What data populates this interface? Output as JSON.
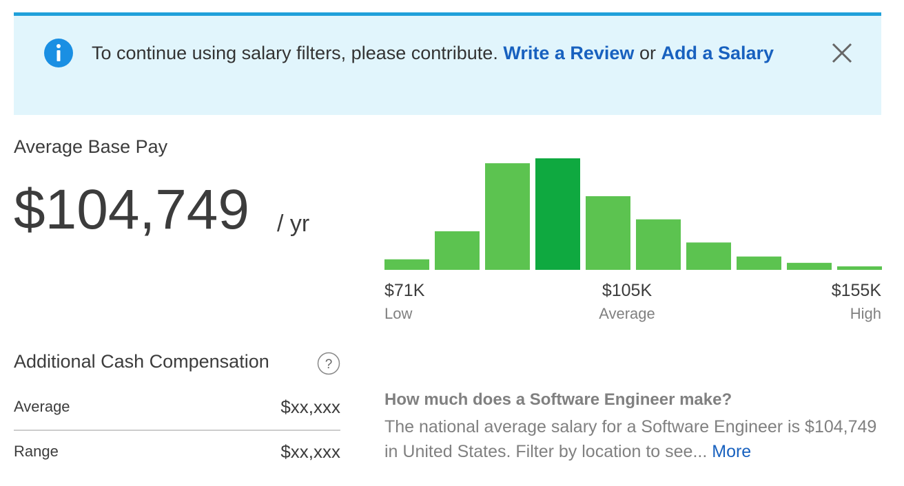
{
  "banner": {
    "text": "To continue using salary filters, please contribute.",
    "link1": "Write a Review",
    "joiner": "or",
    "link2": "Add a Salary"
  },
  "pay": {
    "label": "Average Base Pay",
    "amount": "$104,749",
    "unit": "/ yr"
  },
  "histogram": {
    "values": [
      15,
      55,
      152,
      159,
      105,
      72,
      39,
      19,
      10,
      5
    ],
    "colors": [
      "#5cc350",
      "#5cc350",
      "#5cc350",
      "#0fa940",
      "#5cc350",
      "#5cc350",
      "#5cc350",
      "#5cc350",
      "#5cc350",
      "#5cc350"
    ],
    "low": {
      "value": "$71K",
      "label": "Low"
    },
    "average": {
      "value": "$105K",
      "label": "Average"
    },
    "high": {
      "value": "$155K",
      "label": "High"
    }
  },
  "additional": {
    "title": "Additional Cash Compensation",
    "rows": [
      [
        "Average",
        "$xx,xxx"
      ],
      [
        "Range",
        "$xx,xxx"
      ]
    ]
  },
  "info": {
    "question": "How much does a Software Engineer make?",
    "text": "The national average salary for a Software Engineer is $104,749 in United States. Filter by location to see...",
    "more": "More"
  }
}
